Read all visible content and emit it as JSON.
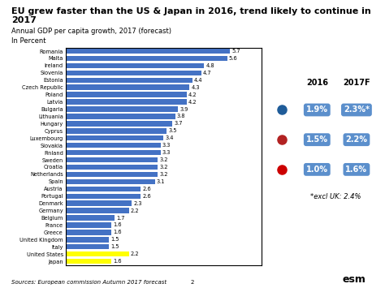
{
  "chart_data": {
    "type": "bar",
    "orientation": "horizontal",
    "title": "EU grew faster than the US & Japan in 2016, trend likely to continue in 2017",
    "subtitle": "Annual GDP per capita growth, 2017 (forecast)",
    "y_label_note": "In Percent",
    "categories": [
      "Romania",
      "Malta",
      "Ireland",
      "Slovenia",
      "Estonia",
      "Czech Republic",
      "Poland",
      "Latvia",
      "Bulgaria",
      "Lithuania",
      "Hungary",
      "Cyprus",
      "Luxembourg",
      "Slovakia",
      "Finland",
      "Sweden",
      "Croatia",
      "Netherlands",
      "Spain",
      "Austria",
      "Portugal",
      "Denmark",
      "Germany",
      "Belgium",
      "France",
      "Greece",
      "United Kingdom",
      "Italy",
      "United States",
      "Japan"
    ],
    "values": [
      5.7,
      5.6,
      4.8,
      4.7,
      4.4,
      4.3,
      4.2,
      4.2,
      3.9,
      3.8,
      3.7,
      3.5,
      3.4,
      3.3,
      3.3,
      3.2,
      3.2,
      3.2,
      3.1,
      2.6,
      2.6,
      2.3,
      2.2,
      1.7,
      1.6,
      1.6,
      1.5,
      1.5,
      2.2,
      1.6
    ],
    "colors": [
      "#4472C4",
      "#4472C4",
      "#4472C4",
      "#4472C4",
      "#4472C4",
      "#4472C4",
      "#4472C4",
      "#4472C4",
      "#4472C4",
      "#4472C4",
      "#4472C4",
      "#4472C4",
      "#4472C4",
      "#4472C4",
      "#4472C4",
      "#4472C4",
      "#4472C4",
      "#4472C4",
      "#4472C4",
      "#4472C4",
      "#4472C4",
      "#4472C4",
      "#4472C4",
      "#4472C4",
      "#4472C4",
      "#4472C4",
      "#4472C4",
      "#4472C4",
      "#FFFF00",
      "#FFFF00"
    ],
    "xlim": [
      0,
      6.8
    ],
    "tick_labels": "y",
    "data_labels": true,
    "grid": false,
    "table": {
      "columns": [
        "2016",
        "2017F"
      ],
      "rows": [
        [
          "1.9%",
          "2.3%*"
        ],
        [
          "1.5%",
          "2.2%"
        ],
        [
          "1.0%",
          "1.6%"
        ]
      ],
      "row_colors": [
        "#1F5C99",
        "#B22222",
        "#CC0000"
      ],
      "color": "#5B8FCC"
    },
    "note": "*excl UK: 2.4%",
    "source": "Sources: European commission Autumn 2017 forecast",
    "annotations": [
      "2",
      "esm"
    ]
  }
}
